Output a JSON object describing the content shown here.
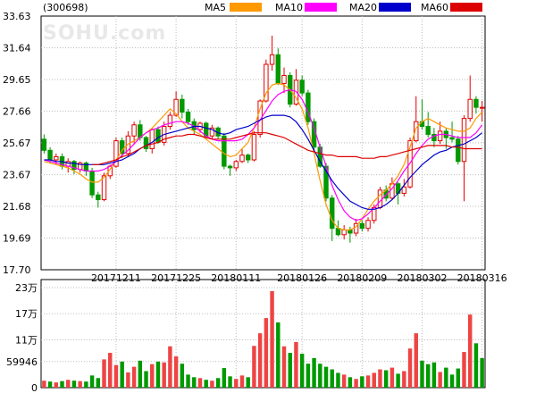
{
  "header": {
    "code": "(300698)",
    "watermark": "SOHU.com",
    "legend": [
      {
        "name": "MA5",
        "color": "#ff9900"
      },
      {
        "name": "MA10",
        "color": "#ff00ff"
      },
      {
        "name": "MA20",
        "color": "#0000cc"
      },
      {
        "name": "MA60",
        "color": "#dd0000"
      }
    ]
  },
  "colors": {
    "up": "#e60000",
    "down": "#009900",
    "up_fill": "#ffffff",
    "bar_up": "#ee4444",
    "bar_down": "#009900",
    "grid": "#bbbbbb"
  },
  "chart_data": [
    {
      "type": "candlestick",
      "title": "",
      "y_ticks": [
        "33.63",
        "31.64",
        "29.65",
        "27.66",
        "25.67",
        "23.67",
        "21.68",
        "19.69",
        "17.70"
      ],
      "ylim": [
        17.7,
        33.63
      ],
      "x_ticks": [
        {
          "label": "20171211",
          "index": 12
        },
        {
          "label": "20171225",
          "index": 22
        },
        {
          "label": "20180111",
          "index": 32
        },
        {
          "label": "20180126",
          "index": 43
        },
        {
          "label": "20180209",
          "index": 53
        },
        {
          "label": "20180302",
          "index": 63
        },
        {
          "label": "20180316",
          "index": 73
        }
      ],
      "series_ma": [
        {
          "name": "MA5",
          "color": "#ff9900",
          "values": [
            24.5,
            24.4,
            24.3,
            24.2,
            24.1,
            23.9,
            23.7,
            23.4,
            23.2,
            23.2,
            23.5,
            24.0,
            24.6,
            25.2,
            25.6,
            25.8,
            26.0,
            26.3,
            26.6,
            27.0,
            27.4,
            27.8,
            27.5,
            27.0,
            26.6,
            26.4,
            26.2,
            25.9,
            25.6,
            25.3,
            25.0,
            24.8,
            24.9,
            25.3,
            25.7,
            26.6,
            27.8,
            28.8,
            29.3,
            29.4,
            29.3,
            29.0,
            28.5,
            27.8,
            26.6,
            25.0,
            23.3,
            21.8,
            20.8,
            20.3,
            20.2,
            20.2,
            20.4,
            20.9,
            21.5,
            22.0,
            22.4,
            22.7,
            23.1,
            23.6,
            24.3,
            25.4,
            26.6,
            27.0,
            27.2,
            27.0,
            26.8,
            26.6,
            26.5,
            26.4,
            26.4,
            26.6,
            27.2,
            27.6
          ]
        },
        {
          "name": "MA10",
          "color": "#ff00ff",
          "values": [
            24.6,
            24.5,
            24.4,
            24.3,
            24.2,
            24.1,
            24.0,
            23.9,
            23.9,
            23.9,
            24.0,
            24.2,
            24.5,
            24.9,
            25.2,
            25.6,
            26.0,
            26.3,
            26.5,
            26.6,
            26.8,
            26.9,
            27.0,
            27.0,
            26.9,
            26.7,
            26.4,
            26.1,
            25.9,
            25.8,
            25.8,
            25.8,
            25.8,
            25.9,
            26.2,
            26.6,
            27.1,
            27.7,
            28.3,
            28.7,
            28.9,
            29.0,
            28.9,
            28.4,
            27.6,
            26.6,
            25.4,
            24.2,
            23.0,
            22.1,
            21.4,
            21.0,
            20.8,
            20.9,
            21.2,
            21.6,
            22.0,
            22.4,
            22.8,
            23.3,
            23.9,
            24.4,
            25.0,
            25.5,
            25.9,
            26.1,
            26.2,
            26.2,
            26.1,
            26.0,
            26.0,
            26.0,
            26.3,
            26.8
          ]
        },
        {
          "name": "MA20",
          "color": "#0000cc",
          "values": [
            24.6,
            24.6,
            24.5,
            24.5,
            24.4,
            24.4,
            24.3,
            24.3,
            24.3,
            24.3,
            24.3,
            24.4,
            24.5,
            24.6,
            24.8,
            25.0,
            25.3,
            25.5,
            25.7,
            26.0,
            26.2,
            26.3,
            26.4,
            26.5,
            26.6,
            26.7,
            26.7,
            26.6,
            26.5,
            26.3,
            26.2,
            26.3,
            26.5,
            26.6,
            26.7,
            26.9,
            27.1,
            27.3,
            27.4,
            27.4,
            27.4,
            27.3,
            27.0,
            26.5,
            25.9,
            25.2,
            24.5,
            23.9,
            23.3,
            22.8,
            22.4,
            22.0,
            21.8,
            21.6,
            21.5,
            21.5,
            21.6,
            21.8,
            22.1,
            22.5,
            23.0,
            23.5,
            23.9,
            24.3,
            24.6,
            24.9,
            25.1,
            25.2,
            25.4,
            25.5,
            25.6,
            25.8,
            26.0,
            26.3
          ]
        },
        {
          "name": "MA60",
          "color": "#dd0000",
          "values": [
            null,
            null,
            null,
            null,
            null,
            null,
            null,
            null,
            24.3,
            24.3,
            24.4,
            24.5,
            24.6,
            24.8,
            24.9,
            25.1,
            25.3,
            25.5,
            25.6,
            25.7,
            25.9,
            26.0,
            26.1,
            26.1,
            26.2,
            26.2,
            26.1,
            26.0,
            25.9,
            25.9,
            25.9,
            25.9,
            26.0,
            26.1,
            26.2,
            26.3,
            26.3,
            26.3,
            26.2,
            26.1,
            26.0,
            25.8,
            25.6,
            25.4,
            25.2,
            25.1,
            25.0,
            24.9,
            24.9,
            24.8,
            24.8,
            24.8,
            24.8,
            24.7,
            24.7,
            24.7,
            24.8,
            24.8,
            24.9,
            25.0,
            25.1,
            25.2,
            25.3,
            25.4,
            25.5,
            25.5,
            25.5,
            25.5,
            25.4,
            25.4,
            25.3,
            25.3,
            25.3,
            25.3
          ]
        }
      ],
      "candles": [
        [
          25.9,
          25.2,
          26.2,
          25.0
        ],
        [
          25.2,
          24.6,
          25.4,
          24.4
        ],
        [
          24.6,
          24.8,
          25.0,
          24.3
        ],
        [
          24.8,
          24.2,
          25.0,
          24.0
        ],
        [
          24.2,
          24.5,
          24.7,
          23.8
        ],
        [
          24.5,
          24.0,
          24.6,
          23.7
        ],
        [
          24.0,
          24.4,
          24.5,
          23.8
        ],
        [
          24.4,
          23.9,
          24.5,
          23.6
        ],
        [
          23.9,
          22.4,
          24.1,
          22.2
        ],
        [
          22.4,
          22.1,
          22.6,
          21.6
        ],
        [
          22.1,
          23.6,
          23.8,
          22.0
        ],
        [
          23.6,
          24.2,
          24.3,
          23.4
        ],
        [
          24.2,
          25.8,
          26.0,
          24.1
        ],
        [
          25.8,
          25.0,
          26.0,
          24.7
        ],
        [
          25.0,
          26.1,
          26.4,
          24.8
        ],
        [
          26.1,
          26.8,
          27.0,
          25.6
        ],
        [
          26.8,
          26.0,
          27.1,
          25.8
        ],
        [
          26.0,
          25.3,
          26.1,
          25.1
        ],
        [
          25.3,
          26.5,
          26.6,
          25.0
        ],
        [
          26.5,
          25.7,
          26.7,
          25.6
        ],
        [
          25.7,
          26.7,
          27.0,
          25.5
        ],
        [
          26.7,
          27.4,
          27.6,
          26.5
        ],
        [
          27.4,
          28.4,
          28.9,
          27.3
        ],
        [
          28.4,
          27.6,
          28.7,
          27.2
        ],
        [
          27.6,
          27.0,
          27.8,
          26.8
        ],
        [
          27.0,
          26.5,
          27.2,
          26.2
        ],
        [
          26.5,
          26.9,
          27.0,
          26.3
        ],
        [
          26.9,
          26.1,
          27.0,
          25.9
        ],
        [
          26.1,
          26.6,
          26.8,
          25.9
        ],
        [
          26.6,
          26.1,
          26.7,
          25.9
        ],
        [
          26.1,
          24.2,
          26.3,
          24.0
        ],
        [
          24.2,
          24.1,
          24.3,
          23.6
        ],
        [
          24.1,
          24.5,
          24.6,
          23.9
        ],
        [
          24.5,
          24.9,
          25.3,
          24.4
        ],
        [
          24.9,
          24.6,
          25.0,
          24.4
        ],
        [
          24.6,
          26.2,
          26.4,
          24.5
        ],
        [
          26.2,
          28.3,
          28.4,
          26.0
        ],
        [
          28.3,
          30.6,
          30.9,
          28.2
        ],
        [
          30.6,
          31.2,
          32.4,
          30.2
        ],
        [
          31.2,
          29.4,
          31.6,
          29.3
        ],
        [
          29.4,
          29.9,
          30.4,
          28.8
        ],
        [
          29.9,
          28.1,
          30.1,
          27.9
        ],
        [
          28.1,
          29.6,
          30.3,
          28.0
        ],
        [
          29.6,
          28.8,
          29.9,
          28.6
        ],
        [
          28.8,
          27.0,
          29.0,
          26.8
        ],
        [
          27.0,
          25.4,
          27.2,
          25.2
        ],
        [
          25.4,
          24.2,
          25.6,
          24.1
        ],
        [
          24.2,
          22.2,
          24.4,
          22.0
        ],
        [
          22.2,
          20.3,
          22.4,
          19.5
        ],
        [
          20.3,
          19.9,
          20.8,
          19.8
        ],
        [
          19.9,
          20.2,
          20.5,
          19.6
        ],
        [
          20.2,
          20.0,
          20.4,
          19.4
        ],
        [
          20.0,
          20.6,
          20.9,
          19.8
        ],
        [
          20.6,
          20.3,
          20.8,
          20.1
        ],
        [
          20.3,
          20.8,
          21.0,
          20.1
        ],
        [
          20.8,
          21.6,
          21.8,
          20.6
        ],
        [
          21.6,
          22.7,
          22.9,
          21.5
        ],
        [
          22.7,
          22.2,
          23.0,
          22.0
        ],
        [
          22.2,
          23.1,
          23.5,
          22.1
        ],
        [
          23.1,
          22.5,
          23.2,
          21.8
        ],
        [
          22.5,
          22.9,
          23.4,
          22.3
        ],
        [
          22.9,
          25.8,
          26.0,
          22.8
        ],
        [
          25.8,
          27.0,
          28.6,
          25.7
        ],
        [
          27.0,
          26.7,
          28.4,
          26.5
        ],
        [
          26.7,
          26.2,
          27.6,
          26.0
        ],
        [
          26.2,
          25.8,
          26.6,
          25.4
        ],
        [
          25.8,
          26.4,
          27.0,
          25.6
        ],
        [
          26.4,
          26.0,
          26.6,
          25.3
        ],
        [
          26.0,
          25.9,
          27.0,
          25.7
        ],
        [
          25.9,
          24.5,
          26.1,
          24.3
        ],
        [
          24.5,
          27.2,
          27.4,
          22.0
        ],
        [
          27.2,
          28.4,
          29.9,
          27.0
        ],
        [
          28.4,
          27.9,
          28.6,
          27.5
        ],
        [
          27.9,
          27.9,
          28.3,
          27.0
        ]
      ]
    },
    {
      "type": "bar",
      "title": "",
      "y_ticks": [
        "23万",
        "17万",
        "11万",
        "59946",
        "0"
      ],
      "y_tick_values": [
        230000,
        170000,
        110000,
        59946,
        0
      ],
      "ylim": [
        0,
        230000
      ],
      "values": [
        16000,
        14000,
        12000,
        15000,
        18000,
        16000,
        15000,
        14000,
        28000,
        22000,
        65000,
        80000,
        52000,
        60000,
        35000,
        48000,
        62000,
        38000,
        54000,
        60000,
        58000,
        95000,
        72000,
        55000,
        30000,
        24000,
        22000,
        18000,
        16000,
        22000,
        45000,
        26000,
        20000,
        28000,
        24000,
        96000,
        125000,
        160000,
        222000,
        150000,
        95000,
        80000,
        105000,
        78000,
        55000,
        68000,
        55000,
        48000,
        42000,
        34000,
        30000,
        24000,
        20000,
        26000,
        28000,
        34000,
        42000,
        40000,
        46000,
        32000,
        38000,
        90000,
        125000,
        62000,
        54000,
        58000,
        36000,
        46000,
        30000,
        44000,
        82000,
        168000,
        102000,
        68000
      ],
      "up": [
        true,
        false,
        true,
        false,
        true,
        false,
        true,
        false,
        false,
        false,
        true,
        true,
        true,
        false,
        true,
        true,
        false,
        false,
        true,
        false,
        true,
        true,
        true,
        false,
        false,
        false,
        true,
        false,
        true,
        false,
        false,
        false,
        true,
        true,
        false,
        true,
        true,
        true,
        true,
        false,
        true,
        false,
        true,
        false,
        false,
        false,
        false,
        false,
        false,
        false,
        true,
        false,
        true,
        false,
        true,
        true,
        true,
        false,
        true,
        false,
        true,
        true,
        true,
        false,
        false,
        false,
        true,
        false,
        false,
        false,
        true,
        true,
        false,
        false
      ]
    }
  ]
}
